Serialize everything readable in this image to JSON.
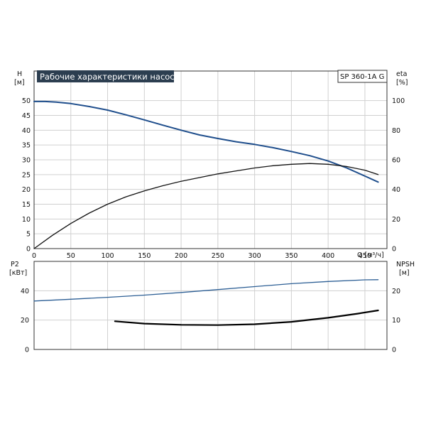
{
  "title": "Рабочие характеристики насоса",
  "model": "SP 360-1A G",
  "colors": {
    "head_curve": "#1f4e8c",
    "efficiency_curve": "#111111",
    "p2_curve": "#2d5f95",
    "npsh_curve": "#000000",
    "title_bg": "#2c3e50",
    "grid": "#d0d0d0",
    "frame": "#333333"
  },
  "chart_data": [
    {
      "type": "line",
      "name": "top-panel",
      "xlabel": "Q [м³/ч]",
      "xlim": [
        0,
        480
      ],
      "x_ticks": [
        0,
        50,
        100,
        150,
        200,
        250,
        300,
        350,
        400,
        450
      ],
      "left_axis": {
        "label_line1": "H",
        "label_line2": "[м]",
        "lim": [
          0,
          60
        ],
        "ticks": [
          0,
          5,
          10,
          15,
          20,
          25,
          30,
          35,
          40,
          45,
          50
        ]
      },
      "right_axis": {
        "label_line1": "eta",
        "label_line2": "[%]",
        "lim": [
          0,
          120
        ],
        "ticks": [
          0,
          20,
          40,
          60,
          80,
          100
        ]
      },
      "grid": true,
      "series": [
        {
          "key": "head",
          "axis": "left",
          "x": [
            0,
            15,
            30,
            50,
            75,
            100,
            125,
            150,
            175,
            200,
            225,
            250,
            275,
            300,
            325,
            350,
            375,
            400,
            425,
            450,
            468
          ],
          "y": [
            49.7,
            49.7,
            49.5,
            49.0,
            48.0,
            46.8,
            45.2,
            43.5,
            41.7,
            40.0,
            38.4,
            37.2,
            36.1,
            35.2,
            34.1,
            32.8,
            31.4,
            29.6,
            27.3,
            24.5,
            22.5
          ]
        },
        {
          "key": "efficiency",
          "axis": "right",
          "x": [
            0,
            25,
            50,
            75,
            100,
            125,
            150,
            175,
            200,
            225,
            250,
            275,
            300,
            325,
            350,
            375,
            400,
            425,
            450,
            468
          ],
          "y": [
            0,
            9,
            17,
            24,
            30,
            35,
            39,
            42.5,
            45.5,
            48,
            50.5,
            52.5,
            54.5,
            56,
            57,
            57.5,
            57,
            55.5,
            53,
            50
          ]
        }
      ]
    },
    {
      "type": "line",
      "name": "bottom-panel",
      "xlim": [
        0,
        480
      ],
      "left_axis": {
        "label_line1": "P2",
        "label_line2": "[кВт]",
        "lim": [
          0,
          60
        ],
        "ticks": [
          0,
          20,
          40
        ]
      },
      "right_axis": {
        "label_line1": "NPSH",
        "label_line2": "[м]",
        "lim": [
          0,
          30
        ],
        "ticks": [
          0,
          10,
          20
        ]
      },
      "grid": true,
      "series": [
        {
          "key": "p2",
          "axis": "left",
          "x": [
            0,
            50,
            100,
            150,
            200,
            250,
            300,
            350,
            400,
            450,
            468
          ],
          "y": [
            33,
            34.2,
            35.5,
            37,
            38.8,
            40.8,
            42.8,
            44.8,
            46.3,
            47.4,
            47.5
          ]
        },
        {
          "key": "npsh",
          "axis": "right",
          "x": [
            110,
            150,
            200,
            250,
            300,
            350,
            400,
            440,
            468
          ],
          "y": [
            9.6,
            8.8,
            8.4,
            8.3,
            8.6,
            9.4,
            10.8,
            12.2,
            13.3
          ]
        }
      ]
    }
  ]
}
